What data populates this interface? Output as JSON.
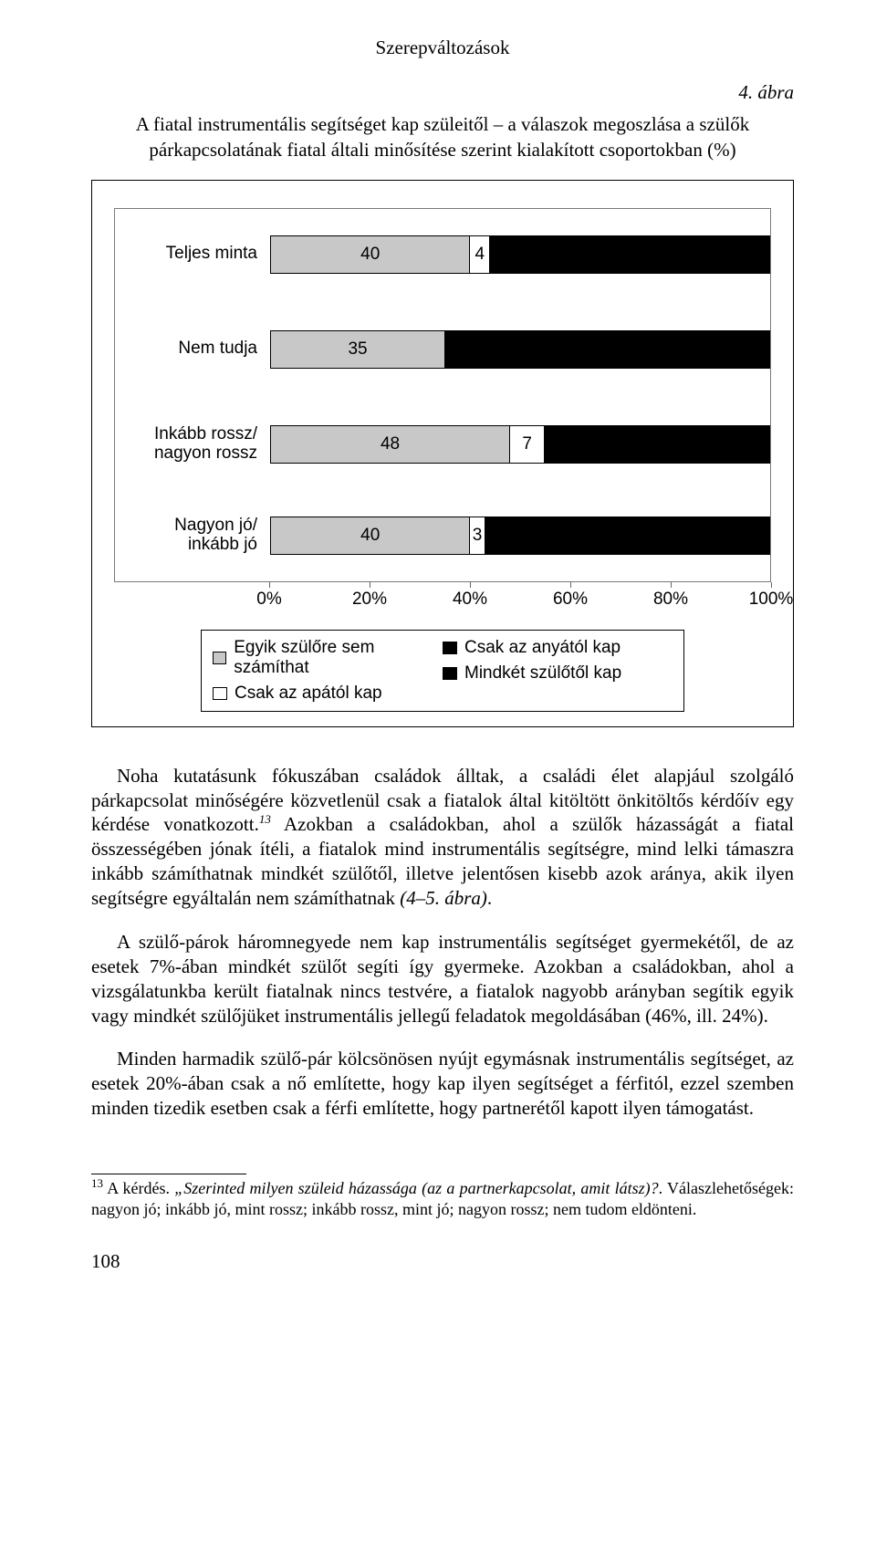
{
  "header": "Szerepváltozások",
  "figureLabel": "4. ábra",
  "caption": "A fiatal instrumentális segítséget kap szüleitől – a válaszok megoszlása a szülők párkapcsolatának fiatal általi minősítése szerint kialakított csoportokban (%)",
  "chart": {
    "categories": [
      {
        "label": "Teljes minta",
        "segments": [
          {
            "v": 40,
            "c": "grey"
          },
          {
            "v": 4,
            "c": "white"
          }
        ]
      },
      {
        "label": "Nem tudja",
        "segments": [
          {
            "v": 35,
            "c": "grey"
          }
        ]
      },
      {
        "label": "Inkább rossz/ nagyon rossz",
        "segments": [
          {
            "v": 48,
            "c": "grey"
          },
          {
            "v": 7,
            "c": "white"
          }
        ]
      },
      {
        "label": "Nagyon jó/ inkább jó",
        "segments": [
          {
            "v": 40,
            "c": "grey"
          },
          {
            "v": 3,
            "c": "white"
          }
        ]
      }
    ],
    "xticks": [
      "0%",
      "20%",
      "40%",
      "60%",
      "80%",
      "100%"
    ],
    "legend": [
      [
        {
          "label": "Egyik szülőre sem számíthat",
          "c": "grey"
        },
        {
          "label": "Csak az anyától kap",
          "c": "black"
        }
      ],
      [
        {
          "label": "Csak az apától kap",
          "c": "white"
        },
        {
          "label": "Mindkét szülőtől kap",
          "c": "black"
        }
      ]
    ],
    "grey": "#c8c8c8",
    "white": "#ffffff",
    "black": "#000000"
  },
  "para1a": "Noha kutatásunk fókuszában családok álltak, a családi élet alapjául szolgáló párkapcsolat minőségére közvetlenül csak a fiatalok által kitöltött önkitöltős kérdőív egy kérdése vonatkozott.",
  "para1b": " Azokban a családokban, ahol a szülők házasságát a fiatal összességében jónak ítéli, a fiatalok mind instrumentális segítségre, mind lelki támaszra inkább számíthatnak mindkét szülőtől, illetve jelentősen kisebb azok aránya, akik ilyen segítségre egyáltalán nem számíthatnak ",
  "para1c": "(4–5. ábra)",
  "para2": "A szülő-párok háromnegyede nem kap instrumentális segítséget gyermekétől, de az esetek 7%-ában mindkét szülőt segíti így gyermeke. Azokban a családokban, ahol a vizsgálatunkba került fiatalnak nincs testvére, a fiatalok nagyobb arányban segítik egyik vagy mindkét szülőjüket instrumentális jellegű feladatok megoldásában (46%, ill. 24%).",
  "para3": "Minden harmadik szülő-pár kölcsönösen nyújt egymásnak instrumentális segítséget, az esetek 20%-ában csak a nő említette, hogy kap ilyen segítséget a férfitól, ezzel szemben minden tizedik esetben csak a férfi említette, hogy partnerétől kapott ilyen támogatást.",
  "footnoteNum": "13",
  "footnoteA": " A kérdés. ",
  "footnoteQ": "„Szerinted milyen szüleid házassága (az a partnerkapcsolat, amit látsz)?",
  "footnoteB": ". Válaszlehetőségek: nagyon jó; inkább jó, mint rossz; inkább rossz, mint jó; nagyon rossz; nem tudom eldönteni.",
  "supRef": "13",
  "pageNum": "108"
}
